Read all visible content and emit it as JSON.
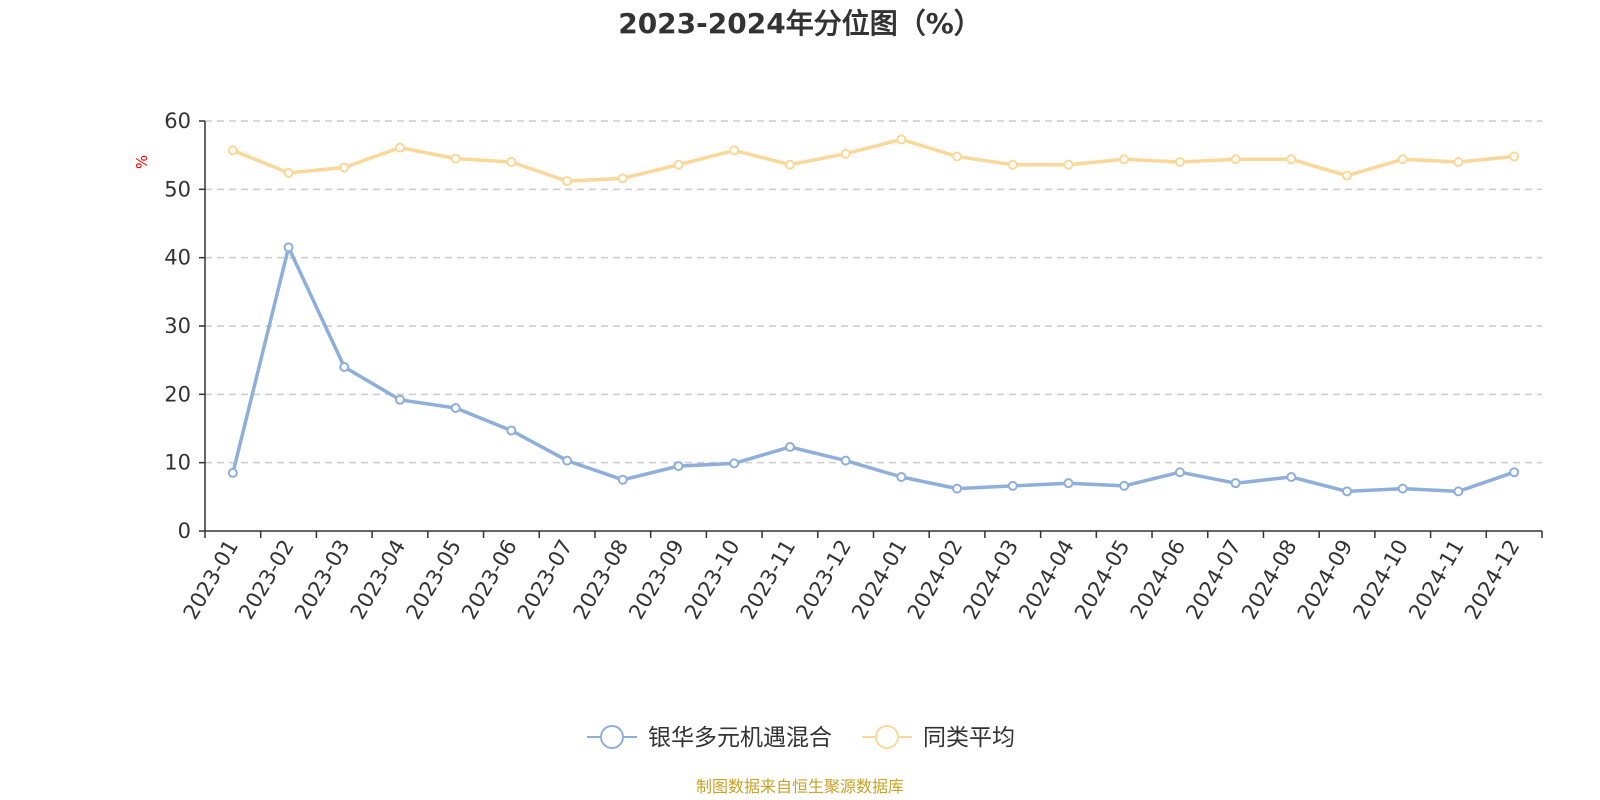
{
  "chart_data": {
    "type": "line",
    "title": "2023-2024年分位图（%）",
    "xlabel": "",
    "ylabel": "%",
    "ylim": [
      0,
      60
    ],
    "yticks": [
      0,
      10,
      20,
      30,
      40,
      50,
      60
    ],
    "grid": "horizontal dashed",
    "legend": "bottom-center",
    "categories": [
      "2023-01",
      "2023-02",
      "2023-03",
      "2023-04",
      "2023-05",
      "2023-06",
      "2023-07",
      "2023-08",
      "2023-09",
      "2023-10",
      "2023-11",
      "2023-12",
      "2024-01",
      "2024-02",
      "2024-03",
      "2024-04",
      "2024-05",
      "2024-06",
      "2024-07",
      "2024-08",
      "2024-09",
      "2024-10",
      "2024-11",
      "2024-12"
    ],
    "series": [
      {
        "name": "银华多元机遇混合",
        "color": "#8eaedb",
        "values": [
          8.5,
          41.5,
          24.0,
          19.2,
          18.0,
          14.7,
          10.3,
          7.5,
          9.5,
          9.9,
          12.3,
          10.3,
          7.9,
          6.2,
          6.6,
          7.0,
          6.6,
          8.6,
          7.0,
          7.9,
          5.8,
          6.2,
          5.8,
          8.6
        ]
      },
      {
        "name": "同类平均",
        "color": "#fbd899",
        "values": [
          55.7,
          52.4,
          53.2,
          56.1,
          54.5,
          54.0,
          51.2,
          51.6,
          53.6,
          55.7,
          53.6,
          55.2,
          57.3,
          54.8,
          53.6,
          53.6,
          54.4,
          54.0,
          54.4,
          54.4,
          52.0,
          54.4,
          54.0,
          54.8
        ]
      }
    ]
  },
  "footer": {
    "source": "制图数据来自恒生聚源数据库",
    "source_color": "#c9a227"
  },
  "axis_color": "#333333",
  "grid_color": "#cccccc"
}
